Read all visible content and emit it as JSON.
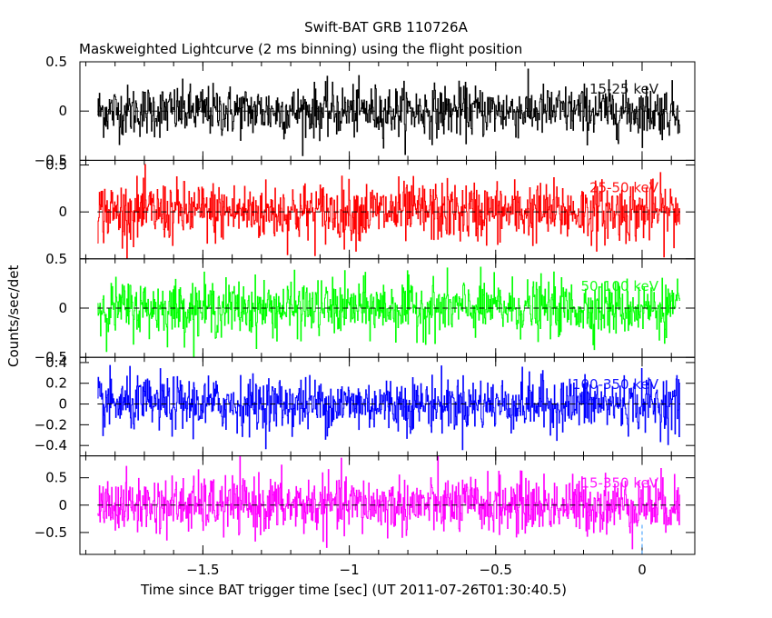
{
  "chart_data": {
    "type": "line",
    "title": "Swift-BAT GRB 110726A",
    "subtitle": "Maskweighted Lightcurve (2 ms binning) using the flight position",
    "xlabel": "Time since BAT trigger time [sec] (UT 2011-07-26T01:30:40.5)",
    "ylabel": "Counts/sec/det",
    "xlim": [
      -1.92,
      0.18
    ],
    "x_range_data": [
      -1.86,
      0.13
    ],
    "x_ticks": [
      -1.5,
      -1,
      -0.5,
      0
    ],
    "x_tick_labels": [
      "−1.5",
      "−1",
      "−0.5",
      "0"
    ],
    "trigger_marker_x": 0,
    "panels": [
      {
        "name": "15-25 keV",
        "color": "#000000",
        "ylim": [
          -0.5,
          0.5
        ],
        "yticks": [
          -0.5,
          0,
          0.5
        ],
        "ytick_labels": [
          "−0.5",
          "0",
          "0.5"
        ],
        "noise_sigma": 0.13
      },
      {
        "name": "25-50 keV",
        "color": "#ff0000",
        "ylim": [
          -0.5,
          0.55
        ],
        "yticks": [
          0,
          0.5
        ],
        "ytick_labels": [
          "0",
          "0.5"
        ],
        "noise_sigma": 0.16
      },
      {
        "name": "50-100 keV",
        "color": "#00ff00",
        "ylim": [
          -0.5,
          0.5
        ],
        "yticks": [
          -0.5,
          0,
          0.5
        ],
        "ytick_labels": [
          "−0.5",
          "0",
          "0.5"
        ],
        "noise_sigma": 0.14
      },
      {
        "name": "100-350 keV",
        "color": "#0000ff",
        "ylim": [
          -0.5,
          0.45
        ],
        "yticks": [
          -0.4,
          -0.2,
          0,
          0.2,
          0.4
        ],
        "ytick_labels": [
          "−0.4",
          "−0.2",
          "0",
          "0.2",
          "0.4"
        ],
        "noise_sigma": 0.13
      },
      {
        "name": "15-350 keV",
        "color": "#ff00ff",
        "ylim": [
          -0.9,
          0.9
        ],
        "yticks": [
          -0.5,
          0,
          0.5
        ],
        "ytick_labels": [
          "−0.5",
          "0",
          "0.5"
        ],
        "noise_sigma": 0.26
      }
    ],
    "grid": false,
    "legend": "panel labels at right"
  }
}
